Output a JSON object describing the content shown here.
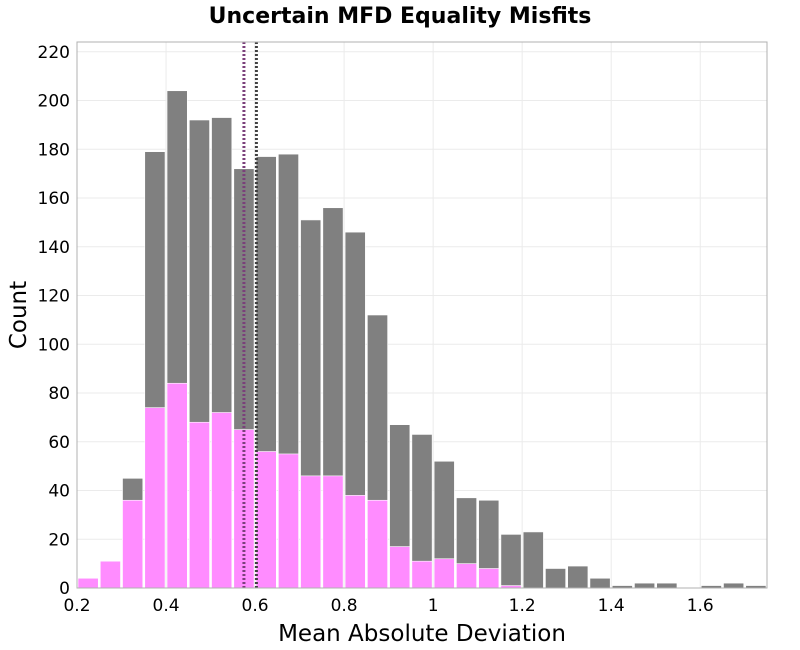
{
  "chart_data": {
    "type": "bar",
    "title": "Uncertain MFD Equality Misfits",
    "xlabel": "Mean Absolute Deviation",
    "ylabel": "Count",
    "xlim": [
      0.2,
      1.75
    ],
    "ylim": [
      0,
      224
    ],
    "x_ticks": [
      0.2,
      0.4,
      0.6,
      0.8,
      1.0,
      1.2,
      1.4,
      1.6
    ],
    "x_tick_labels": [
      "0.2",
      "0.4",
      "0.6",
      "0.8",
      "1",
      "1.2",
      "1.4",
      "1.6"
    ],
    "y_ticks": [
      0,
      20,
      40,
      60,
      80,
      100,
      120,
      140,
      160,
      180,
      200,
      220
    ],
    "y_tick_labels": [
      "0",
      "20",
      "40",
      "60",
      "80",
      "100",
      "120",
      "140",
      "160",
      "180",
      "200",
      "220"
    ],
    "bin_width": 0.05,
    "bin_starts": [
      0.2,
      0.25,
      0.3,
      0.35,
      0.4,
      0.45,
      0.5,
      0.55,
      0.6,
      0.65,
      0.7,
      0.75,
      0.8,
      0.85,
      0.9,
      0.95,
      1.0,
      1.05,
      1.1,
      1.15,
      1.2,
      1.25,
      1.3,
      1.35,
      1.4,
      1.45,
      1.5,
      1.55,
      1.6,
      1.65,
      1.7
    ],
    "series": [
      {
        "color": "#808080",
        "values": [
          0,
          0,
          45,
          179,
          204,
          192,
          193,
          172,
          177,
          178,
          151,
          156,
          146,
          112,
          67,
          63,
          52,
          37,
          36,
          22,
          23,
          8,
          9,
          4,
          1,
          2,
          2,
          0,
          1,
          2,
          1
        ]
      },
      {
        "color": "#ff8cff",
        "values": [
          4,
          11,
          36,
          74,
          84,
          68,
          72,
          65,
          56,
          55,
          46,
          46,
          38,
          36,
          17,
          11,
          12,
          10,
          8,
          1,
          0,
          0,
          0,
          0,
          0,
          0,
          0,
          0,
          0,
          0,
          0
        ]
      }
    ],
    "vertical_lines": [
      {
        "x": 0.575,
        "color": "#7a3f7a",
        "style": "dotted"
      },
      {
        "x": 0.603,
        "color": "#404040",
        "style": "dotted"
      }
    ],
    "grid": true,
    "legend": "none"
  }
}
